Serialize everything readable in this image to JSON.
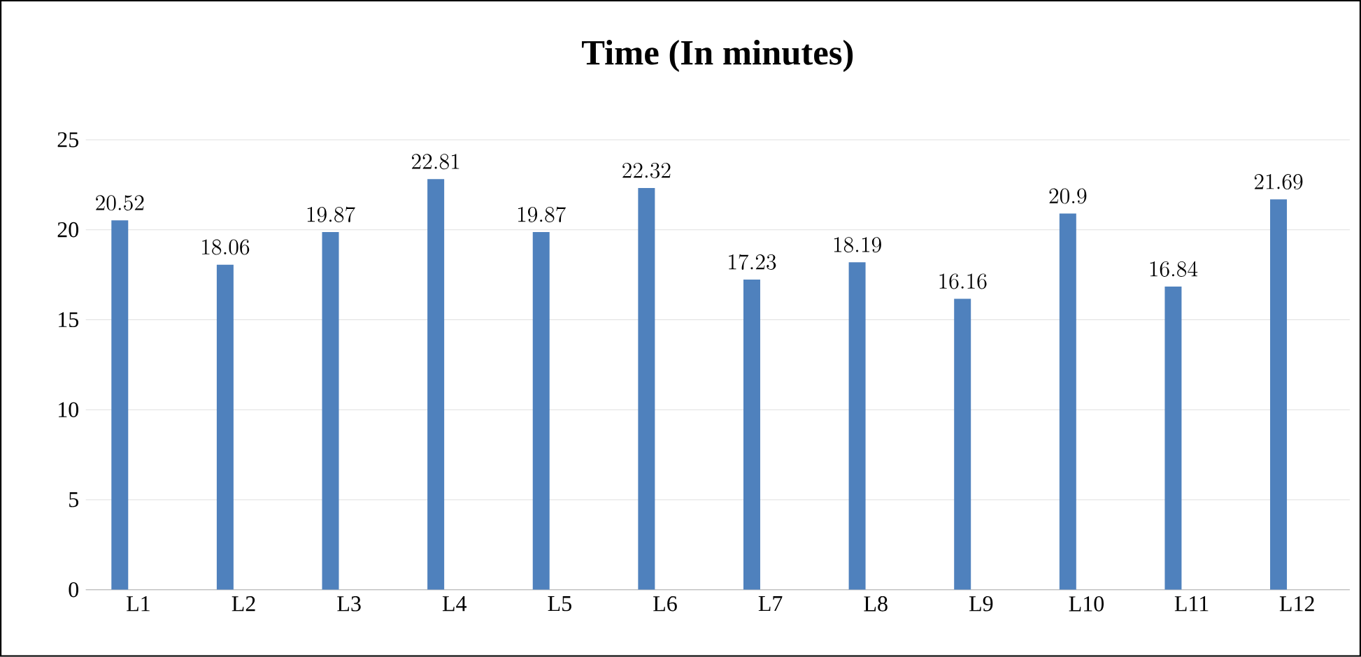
{
  "chart_data": {
    "type": "bar",
    "title": "Time (In minutes)",
    "categories": [
      "L1",
      "L2",
      "L3",
      "L4",
      "L5",
      "L6",
      "L7",
      "L8",
      "L9",
      "L10",
      "L11",
      "L12"
    ],
    "values": [
      20.52,
      18.06,
      19.87,
      22.81,
      19.87,
      22.32,
      17.23,
      18.19,
      16.16,
      20.9,
      16.84,
      21.69
    ],
    "color": "#4f81bd",
    "ylim": [
      0,
      25
    ],
    "yticks": [
      0,
      5,
      10,
      15,
      20,
      25
    ],
    "grid": "y",
    "data_labels": true
  }
}
